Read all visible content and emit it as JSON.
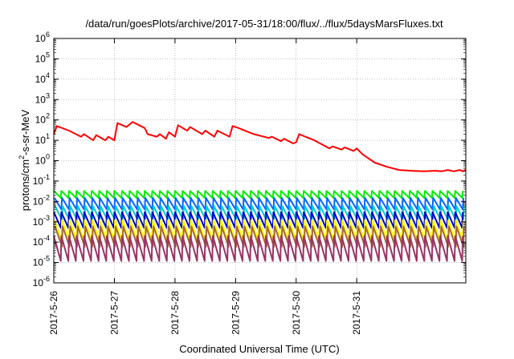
{
  "chart_data": {
    "type": "line",
    "title": "/data/run/goesPlots/archive/2017-05-31/18:00/flux/../flux/5daysMarsFluxes.txt",
    "xlabel": "Coordinated Universal Time (UTC)",
    "ylabel_main": "protons/cm",
    "ylabel_sup": "2",
    "ylabel_rest": "-s-sr-MeV",
    "yscale": "log",
    "ylim_exp": [
      -6,
      6
    ],
    "ytick_exps": [
      -6,
      -5,
      -4,
      -3,
      -2,
      -1,
      0,
      1,
      2,
      3,
      4,
      5,
      6
    ],
    "ytick_base": "10",
    "xlim_days": [
      0,
      6.8
    ],
    "xticks": [
      {
        "day": 0,
        "label": "2017-5-26"
      },
      {
        "day": 1,
        "label": "2017-5-27"
      },
      {
        "day": 2,
        "label": "2017-5-28"
      },
      {
        "day": 3,
        "label": "2017-5-29"
      },
      {
        "day": 4,
        "label": "2017-5-30"
      },
      {
        "day": 5,
        "label": "2017-5-31"
      }
    ],
    "grid": true,
    "red_series": {
      "color": "#ff0000",
      "x": [
        0,
        0.05,
        0.25,
        0.45,
        0.5,
        0.65,
        0.7,
        0.85,
        0.9,
        1.0,
        1.05,
        1.2,
        1.3,
        1.5,
        1.55,
        1.7,
        1.75,
        1.85,
        1.9,
        2.0,
        2.05,
        2.2,
        2.25,
        2.45,
        2.5,
        2.65,
        2.7,
        2.9,
        2.95,
        3.05,
        3.3,
        3.55,
        3.6,
        3.75,
        3.8,
        3.95,
        4.0,
        4.05,
        4.3,
        4.55,
        4.6,
        4.75,
        4.8,
        4.95,
        5.0,
        5.1,
        5.3,
        5.5,
        5.7,
        5.9,
        6.1,
        6.3,
        6.4,
        6.5,
        6.6,
        6.7,
        6.75,
        6.8
      ],
      "y": [
        20,
        50,
        30,
        15,
        20,
        10,
        18,
        10,
        15,
        10,
        70,
        45,
        80,
        40,
        20,
        15,
        20,
        12,
        25,
        15,
        55,
        30,
        45,
        20,
        30,
        15,
        30,
        15,
        50,
        40,
        20,
        13,
        15,
        9,
        12,
        7,
        8,
        20,
        10,
        4,
        5,
        3.5,
        4.5,
        3,
        4,
        2,
        0.8,
        0.5,
        0.35,
        0.32,
        0.3,
        0.32,
        0.3,
        0.35,
        0.3,
        0.35,
        0.3,
        0.35
      ]
    },
    "sawtooth_series": [
      {
        "color": "#00ee00",
        "peak": 0.033,
        "trough": 0.015
      },
      {
        "color": "#0066ff",
        "peak": 0.015,
        "trough": 0.004
      },
      {
        "color": "#00cccc",
        "peak": 0.006,
        "trough": 0.0012
      },
      {
        "color": "#0000cc",
        "peak": 0.003,
        "trough": 0.0005
      },
      {
        "color": "#ffff00",
        "peak": 0.0012,
        "trough": 0.00012
      },
      {
        "color": "#aa6633",
        "peak": 0.0006,
        "trough": 6e-05
      },
      {
        "color": "#993366",
        "peak": 0.0002,
        "trough": 1.2e-05
      }
    ],
    "sawtooth_period_days": 0.125
  }
}
